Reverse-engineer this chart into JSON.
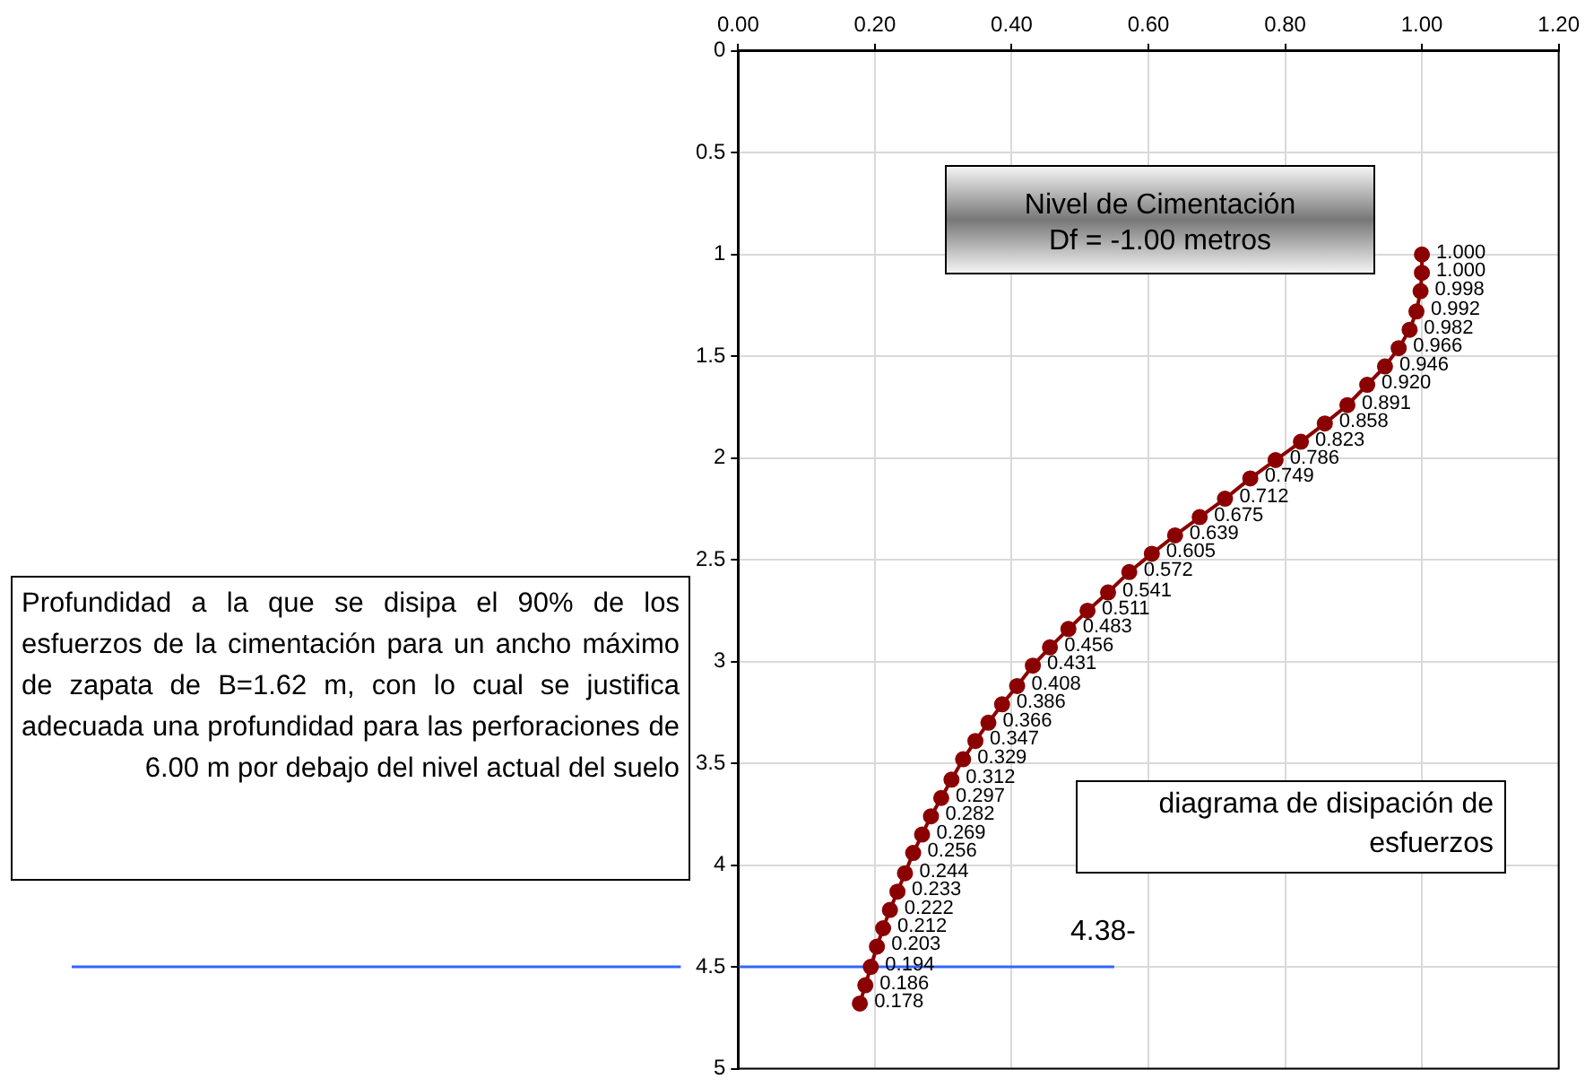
{
  "chart_data": {
    "type": "line",
    "orientation": "horizontal",
    "marker": "circle",
    "line_style": "solid",
    "grid": true,
    "legend": false,
    "xlim": [
      0,
      1.2
    ],
    "xticks": [
      {
        "value": 0,
        "label": "0.00"
      },
      {
        "value": 0.2,
        "label": "0.20"
      },
      {
        "value": 0.4,
        "label": "0.40"
      },
      {
        "value": 0.6,
        "label": "0.60"
      },
      {
        "value": 0.8,
        "label": "0.80"
      },
      {
        "value": 1,
        "label": "1.00"
      },
      {
        "value": 1.2,
        "label": "1.20"
      }
    ],
    "ylim": [
      5,
      0
    ],
    "yticks": [
      0,
      0.5,
      1,
      1.5,
      2,
      2.5,
      3,
      3.5,
      4,
      4.5,
      5
    ],
    "series": [
      {
        "color": "#8b0000",
        "values": [
          1.0,
          1.0,
          0.998,
          0.992,
          0.982,
          0.966,
          0.946,
          0.92,
          0.891,
          0.858,
          0.823,
          0.786,
          0.749,
          0.712,
          0.675,
          0.639,
          0.605,
          0.572,
          0.541,
          0.511,
          0.483,
          0.456,
          0.431,
          0.408,
          0.386,
          0.366,
          0.347,
          0.329,
          0.312,
          0.297,
          0.282,
          0.269,
          0.256,
          0.244,
          0.233,
          0.222,
          0.212,
          0.203,
          0.194,
          0.186,
          0.178
        ],
        "x": [
          1.0,
          1.09,
          1.18,
          1.28,
          1.37,
          1.46,
          1.55,
          1.64,
          1.74,
          1.83,
          1.92,
          2.01,
          2.1,
          2.2,
          2.29,
          2.38,
          2.47,
          2.56,
          2.66,
          2.75,
          2.84,
          2.93,
          3.02,
          3.12,
          3.21,
          3.3,
          3.39,
          3.48,
          3.58,
          3.67,
          3.76,
          3.85,
          3.94,
          4.04,
          4.13,
          4.22,
          4.31,
          4.4,
          4.5,
          4.59,
          4.68
        ],
        "value_labels": [
          "1.000",
          "1.000",
          "0.998",
          "0.992",
          "0.982",
          "0.966",
          "0.946",
          "0.920",
          "0.891",
          "0.858",
          "0.823",
          "0.786",
          "0.749",
          "0.712",
          "0.675",
          "0.639",
          "0.605",
          "0.572",
          "0.541",
          "0.511",
          "0.483",
          "0.456",
          "0.431",
          "0.408",
          "0.386",
          "0.366",
          "0.347",
          "0.329",
          "0.312",
          "0.297",
          "0.282",
          "0.269",
          "0.256",
          "0.244",
          "0.233",
          "0.222",
          "0.212",
          "0.203",
          "0.194",
          "0.186",
          "0.178"
        ]
      }
    ],
    "ref_lines": [
      {
        "axis": "y",
        "value": 4.5,
        "color": "#3366ff"
      }
    ],
    "annotations": [
      "Nivel de Cimentación\nDf = -1.00 metros",
      "Profundidad a la que se disipa el 90% de los esfuerzos de la cimentación para un ancho máximo de zapata de B=1.62 m, con lo cual se justifica adecuada una profundidad para las perforaciones de 6.00 m por debajo del nivel actual del suelo",
      "diagrama de disipación de esfuerzos",
      "4.38-"
    ]
  }
}
